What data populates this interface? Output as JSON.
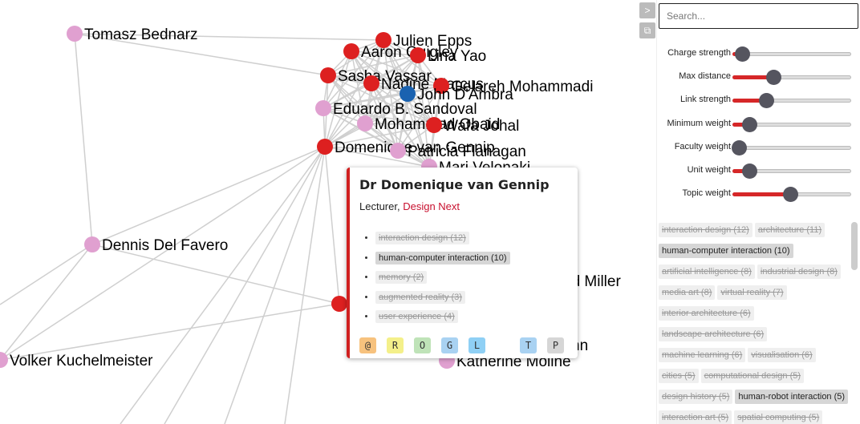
{
  "graph": {
    "nodes": [
      {
        "id": "tomasz",
        "label": "Tomasz Bednarz",
        "color": "#e0a0d0"
      },
      {
        "id": "julien",
        "label": "Julien Epps",
        "color": "#dd2020"
      },
      {
        "id": "aaron",
        "label": "Aaron Quigley",
        "color": "#dd2020"
      },
      {
        "id": "lina",
        "label": "Lina Yao",
        "color": "#dd2020"
      },
      {
        "id": "sasha",
        "label": "Sasha Vassar",
        "color": "#dd2020"
      },
      {
        "id": "nadine",
        "label": "Nadine Marcus",
        "color": "#dd2020"
      },
      {
        "id": "gelareh",
        "label": "Gelareh Mohammadi",
        "color": "#dd2020"
      },
      {
        "id": "john",
        "label": "John D'Ambra",
        "color": "#1a62b0"
      },
      {
        "id": "eduardo",
        "label": "Eduardo B. Sandoval",
        "color": "#e0a0d0"
      },
      {
        "id": "mohammad",
        "label": "Mohammad Obaid",
        "color": "#e0a0d0"
      },
      {
        "id": "wafa",
        "label": "Wafa Johal",
        "color": "#dd2020"
      },
      {
        "id": "domenique",
        "label": "Domenique van Gennip",
        "color": "#dd2020"
      },
      {
        "id": "patricia",
        "label": "Patricia Flanagan",
        "color": "#e0a0d0"
      },
      {
        "id": "mari",
        "label": "Mari Velonaki",
        "color": "#e0a0d0"
      },
      {
        "id": "dennis",
        "label": "Dennis Del Favero",
        "color": "#e0a0d0"
      },
      {
        "id": "miller",
        "label": "ad Miller",
        "color": "#e0a0d0"
      },
      {
        "id": "unnamed",
        "label": "",
        "color": "#dd2020"
      },
      {
        "id": "nn",
        "label": "nn",
        "color": "#e0a0d0"
      },
      {
        "id": "katherine",
        "label": "Katherine Moline",
        "color": "#e0a0d0"
      },
      {
        "id": "volker",
        "label": "Volker Kuchelmeister",
        "color": "#e0a0d0"
      }
    ]
  },
  "card": {
    "name": "Dr Domenique van Gennip",
    "role": "Lecturer,",
    "department": "Design Next",
    "topics": [
      {
        "label": "interaction design (12)",
        "active": false
      },
      {
        "label": "human-computer interaction (10)",
        "active": true
      },
      {
        "label": "memory (2)",
        "active": false
      },
      {
        "label": "augmented reality (3)",
        "active": false
      },
      {
        "label": "user experience (4)",
        "active": false
      }
    ],
    "buttons": [
      {
        "label": "@",
        "color": "#f7c27e"
      },
      {
        "label": "R",
        "color": "#f4f08a"
      },
      {
        "label": "O",
        "color": "#bfe3b8"
      },
      {
        "label": "G",
        "color": "#a9d2f2"
      },
      {
        "label": "L",
        "color": "#8fd0f5"
      },
      {
        "label": "T",
        "color": "#a9d2f2"
      },
      {
        "label": "P",
        "color": "#d6d6d6"
      }
    ]
  },
  "toolbar": {
    "collapse_icon": "chevron-right-icon",
    "popout_icon": "popout-icon",
    "collapse_glyph": ">",
    "popout_glyph": "⧉"
  },
  "search": {
    "placeholder": "Search..."
  },
  "sliders": [
    {
      "label": "Charge strength",
      "value": 0.03
    },
    {
      "label": "Max distance",
      "value": 0.29
    },
    {
      "label": "Link strength",
      "value": 0.23
    },
    {
      "label": "Minimum weight",
      "value": 0.09
    },
    {
      "label": "Faculty weight",
      "value": 0.0
    },
    {
      "label": "Unit weight",
      "value": 0.09
    },
    {
      "label": "Topic weight",
      "value": 0.43
    }
  ],
  "topics": [
    {
      "label": "interaction design (12)",
      "active": false
    },
    {
      "label": "architecture (11)",
      "active": false
    },
    {
      "label": "human-computer interaction (10)",
      "active": true
    },
    {
      "label": "artificial intelligence (8)",
      "active": false
    },
    {
      "label": "industrial design (8)",
      "active": false
    },
    {
      "label": "media art (8)",
      "active": false
    },
    {
      "label": "virtual reality (7)",
      "active": false
    },
    {
      "label": "interior architecture (6)",
      "active": false
    },
    {
      "label": "landscape architecture (6)",
      "active": false
    },
    {
      "label": "machine learning (6)",
      "active": false
    },
    {
      "label": "visualisation (6)",
      "active": false
    },
    {
      "label": "cities (5)",
      "active": false
    },
    {
      "label": "computational design (5)",
      "active": false
    },
    {
      "label": "design history (5)",
      "active": false
    },
    {
      "label": "human-robot interaction (5)",
      "active": true
    },
    {
      "label": "interaction art (5)",
      "active": false
    },
    {
      "label": "spatial computing (5)",
      "active": false
    }
  ],
  "colors": {
    "accent": "#d62728",
    "faculty_pink": "#e0a0d0",
    "faculty_blue": "#1a62b0"
  }
}
